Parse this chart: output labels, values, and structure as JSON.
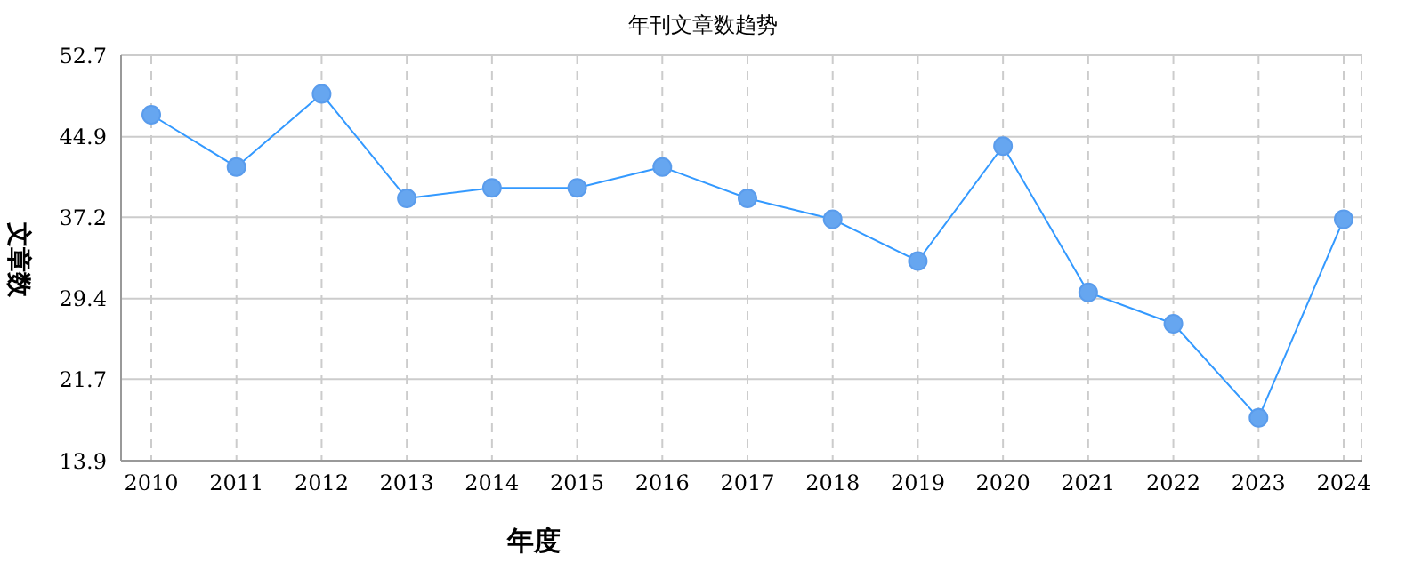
{
  "chart_data": {
    "type": "line",
    "title": "年刊文章数趋势",
    "xlabel": "年度",
    "ylabel": "文章数",
    "categories": [
      "2010",
      "2011",
      "2012",
      "2013",
      "2014",
      "2015",
      "2016",
      "2017",
      "2018",
      "2019",
      "2020",
      "2021",
      "2022",
      "2023",
      "2024"
    ],
    "series": [
      {
        "color": "#3399ff",
        "values": [
          47,
          42,
          49,
          39,
          40,
          40,
          42,
          39,
          37,
          33,
          44,
          30,
          27,
          18,
          37
        ]
      }
    ],
    "ylim": [
      13.9,
      52.7
    ],
    "yticks": [
      13.9,
      21.7,
      29.4,
      37.2,
      44.9,
      52.7
    ],
    "grid": true,
    "marker": "circle",
    "line_style": "solid"
  }
}
